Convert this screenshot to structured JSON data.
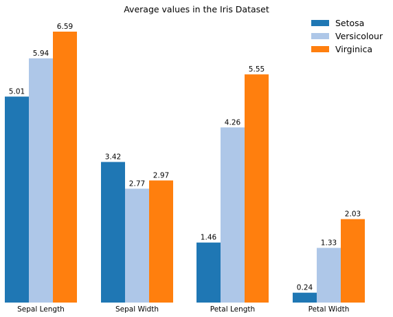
{
  "chart_data": {
    "type": "bar",
    "title": "Average values in the Iris Dataset",
    "categories": [
      "Sepal Length",
      "Sepal Width",
      "Petal Length",
      "Petal Width"
    ],
    "series": [
      {
        "name": "Setosa",
        "color": "#1f77b4",
        "values": [
          5.01,
          3.42,
          1.46,
          0.24
        ]
      },
      {
        "name": "Versicolour",
        "color": "#aec7e8",
        "values": [
          5.94,
          2.77,
          4.26,
          1.33
        ]
      },
      {
        "name": "Virginica",
        "color": "#ff7f0e",
        "values": [
          6.59,
          2.97,
          5.55,
          2.03
        ]
      }
    ],
    "value_labels": [
      [
        "5.01",
        "3.42",
        "1.46",
        "0.24"
      ],
      [
        "5.94",
        "2.77",
        "4.26",
        "1.33"
      ],
      [
        "6.59",
        "2.97",
        "5.55",
        "2.03"
      ]
    ],
    "ylim": [
      0,
      6.59
    ],
    "grid": false,
    "legend_position": "top-right",
    "y_axis_visible": false
  }
}
